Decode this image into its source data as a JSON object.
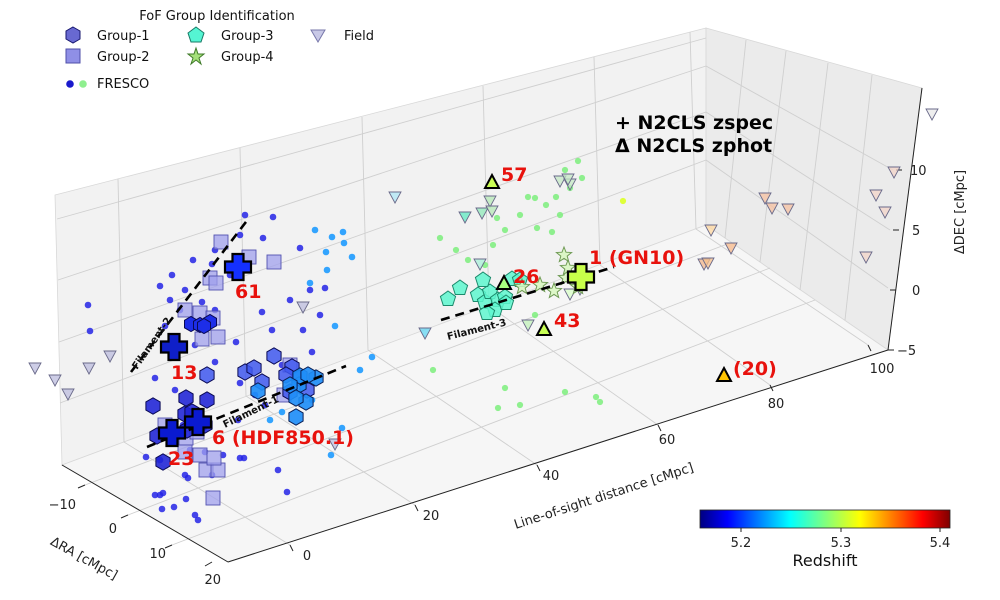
{
  "chart_data": {
    "type": "scatter3d",
    "legend": {
      "title": "FoF Group Identification",
      "entries": [
        {
          "label": "Group-1",
          "marker": "hexagon",
          "color": "#4e4fc9"
        },
        {
          "label": "Group-2",
          "marker": "square",
          "color": "#8f8fe6"
        },
        {
          "label": "Group-3",
          "marker": "pentagon",
          "color": "#55f5d3"
        },
        {
          "label": "Group-4",
          "marker": "star",
          "color": "#a5e07a"
        },
        {
          "label": "Field",
          "marker": "triangle-down",
          "color": "#c8c8e6"
        },
        {
          "label": "FRESCO",
          "marker": "dots",
          "color": "#1a1acc"
        }
      ]
    },
    "marker_notes": [
      "+ N2CLS zspec",
      "Δ N2CLS zphot"
    ],
    "axes": {
      "x": {
        "label": "ΔRA [cMpc]",
        "ticks": [
          "−10",
          "0",
          "10",
          "20"
        ]
      },
      "y": {
        "label": "Line-of-sight distance [cMpc]",
        "ticks": [
          "0",
          "20",
          "40",
          "60",
          "80",
          "100"
        ]
      },
      "z": {
        "label": "ΔDEC [cMpc]",
        "ticks": [
          "−5",
          "0",
          "5",
          "10"
        ]
      }
    },
    "colorbar": {
      "label": "Redshift",
      "ticks": [
        "5.2",
        "5.3",
        "5.4"
      ],
      "range": [
        5.15,
        5.42
      ]
    },
    "labels": [
      {
        "text": "57",
        "kind": "zphot"
      },
      {
        "text": "26",
        "kind": "zphot"
      },
      {
        "text": "43",
        "kind": "zphot"
      },
      {
        "text": "(20)",
        "kind": "zphot"
      },
      {
        "text": "1 (GN10)",
        "kind": "zspec"
      },
      {
        "text": "61",
        "kind": "zspec"
      },
      {
        "text": "13",
        "kind": "zspec"
      },
      {
        "text": "6 (HDF850.1)",
        "kind": "zspec"
      },
      {
        "text": "23",
        "kind": "zspec"
      }
    ],
    "filaments": [
      "Filament-1",
      "Filament-2",
      "Filament-3"
    ]
  }
}
